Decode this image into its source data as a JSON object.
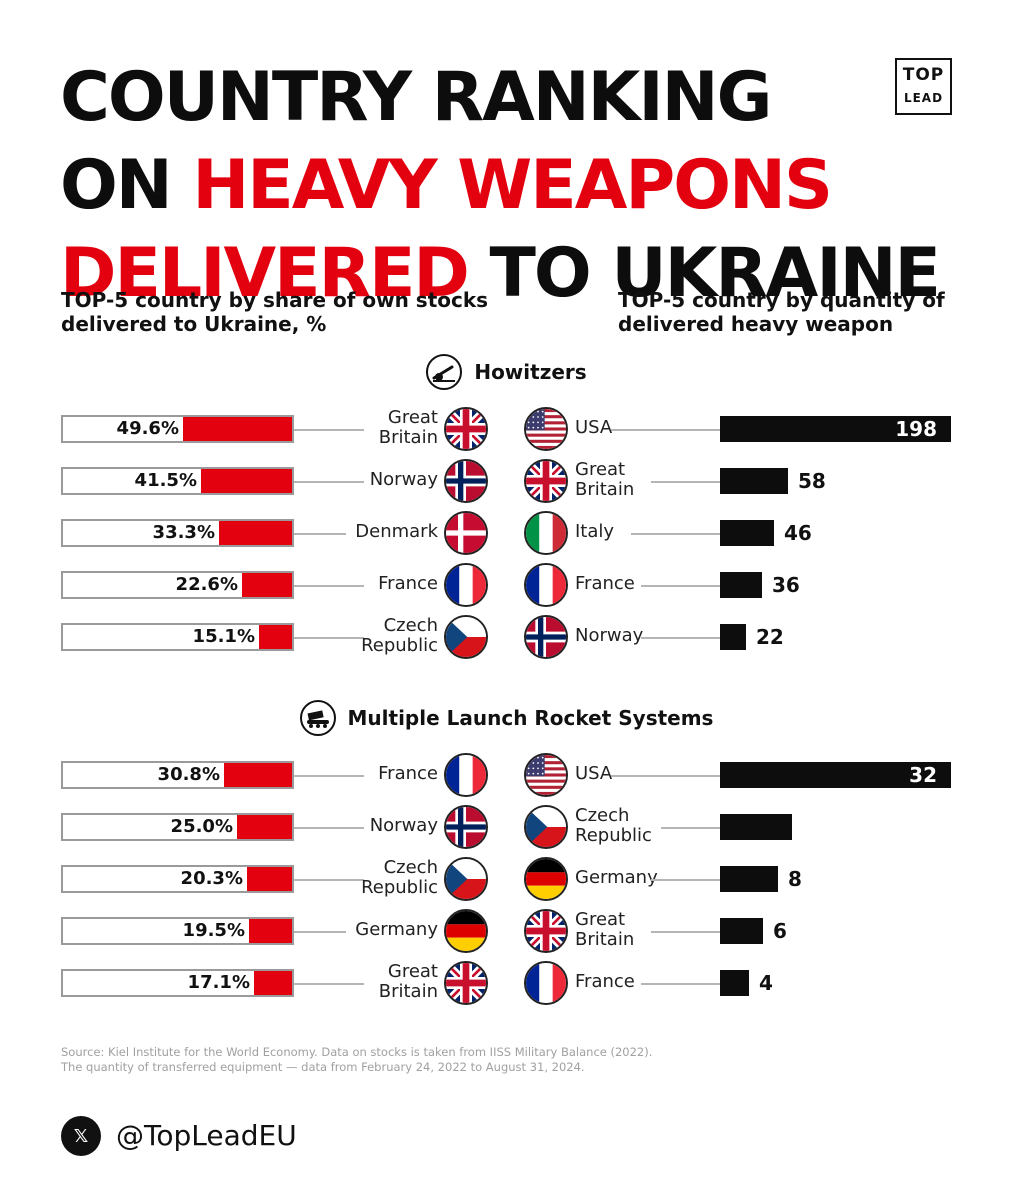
{
  "title": {
    "line1": "COUNTRY RANKING",
    "line2a": "ON ",
    "line2b": "HEAVY WEAPONS",
    "line3a": "DELIVERED",
    "line3b": " TO UKRAINE"
  },
  "logo": {
    "line1": "TOP",
    "line2": "LEAD"
  },
  "left_header": "TOP-5 country by share of own stocks delivered to Ukraine, %",
  "right_header": "TOP-5 country by quantity of delivered heavy weapon",
  "colors": {
    "red": "#e3000f",
    "black": "#0d0d0d"
  },
  "chart_data": [
    {
      "type": "bar",
      "title": "Howitzers",
      "icon": "howitzer-icon",
      "left": {
        "countries": [
          "Great Britain",
          "Norway",
          "Denmark",
          "France",
          "Czech Republic"
        ],
        "country_lines": [
          [
            "Great",
            "Britain"
          ],
          [
            "Norway"
          ],
          [
            "Denmark"
          ],
          [
            "France"
          ],
          [
            "Czech",
            "Republic"
          ]
        ],
        "flags": [
          "uk",
          "norway",
          "denmark",
          "france",
          "czech"
        ],
        "values": [
          49.6,
          41.5,
          33.3,
          22.6,
          15.1
        ],
        "labels": [
          "49.6%",
          "41.5%",
          "33.3%",
          "22.6%",
          "15.1%"
        ]
      },
      "right": {
        "countries": [
          "USA",
          "Great Britain",
          "Italy",
          "France",
          "Norway"
        ],
        "country_lines": [
          [
            "USA"
          ],
          [
            "Great",
            "Britain"
          ],
          [
            "Italy"
          ],
          [
            "France"
          ],
          [
            "Norway"
          ]
        ],
        "flags": [
          "usa",
          "uk",
          "italy",
          "france",
          "norway"
        ],
        "values": [
          198,
          58,
          46,
          36,
          22
        ],
        "labels": [
          "198",
          "58",
          "46",
          "36",
          "22"
        ]
      }
    },
    {
      "type": "bar",
      "title": "Multiple Launch Rocket Systems",
      "icon": "rocket-launcher-icon",
      "left": {
        "countries": [
          "France",
          "Norway",
          "Czech Republic",
          "Germany",
          "Great Britain"
        ],
        "country_lines": [
          [
            "France"
          ],
          [
            "Norway"
          ],
          [
            "Czech",
            "Republic"
          ],
          [
            "Germany"
          ],
          [
            "Great",
            "Britain"
          ]
        ],
        "flags": [
          "france",
          "norway",
          "czech",
          "germany",
          "uk"
        ],
        "values": [
          30.8,
          25.0,
          20.3,
          19.5,
          17.1
        ],
        "labels": [
          "30.8%",
          "25.0%",
          "20.3%",
          "19.5%",
          "17.1%"
        ]
      },
      "right": {
        "countries": [
          "USA",
          "Czech Republic",
          "Germany",
          "Great Britain",
          "France"
        ],
        "country_lines": [
          [
            "USA"
          ],
          [
            "Czech",
            "Republic"
          ],
          [
            "Germany"
          ],
          [
            "Great",
            "Britain"
          ],
          [
            "France"
          ]
        ],
        "flags": [
          "usa",
          "czech",
          "germany",
          "uk",
          "france"
        ],
        "values": [
          32,
          10,
          8,
          6,
          4
        ],
        "labels": [
          "32",
          "",
          "8",
          "6",
          "4"
        ]
      }
    }
  ],
  "source": {
    "line1": "Source: Kiel Institute for the World Economy. Data on stocks is taken from IISS Military Balance (2022).",
    "line2": "The quantity of transferred equipment — data from February 24, 2022 to August 31, 2024."
  },
  "footer": {
    "x_label": "𝕏",
    "handle": "@TopLeadEU"
  }
}
